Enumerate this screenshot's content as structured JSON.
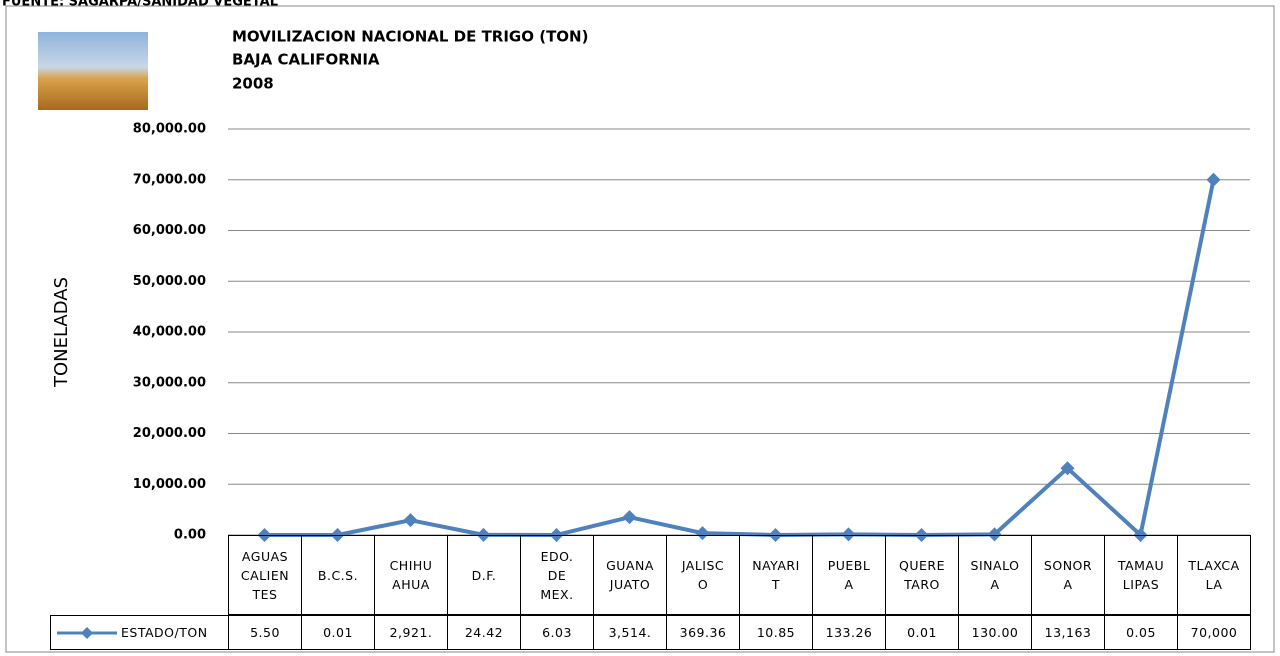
{
  "source": "FUENTE: SAGARPA/SANIDAD VEGETAL",
  "chart_data": {
    "type": "line",
    "title": "MOVILIZACION NACIONAL DE TRIGO (TON)",
    "subtitle": "BAJA CALIFORNIA",
    "year": "2008",
    "y_label": "TONELADAS",
    "categories": [
      "AGUAS\nCALIEN\nTES",
      "B.C.S.",
      "CHIHU\nAHUA",
      "D.F.",
      "EDO.\nDE\nMEX.",
      "GUANA\nJUATO",
      "JALISC\nO",
      "NAYARI\nT",
      "PUEBL\nA",
      "QUERE\nTARO",
      "SINALO\nA",
      "SONOR\nA",
      "TAMAU\nLIPAS",
      "TLAXCA\nLA"
    ],
    "series": [
      {
        "name": "ESTADO/TON",
        "color": "#4f81bd",
        "values": [
          5.5,
          0.01,
          2921,
          24.42,
          6.03,
          3514,
          369.36,
          10.85,
          133.26,
          0.01,
          130,
          13163,
          0.05,
          70000
        ],
        "value_labels": [
          "5.50",
          "0.01",
          "2,921.",
          "24.42",
          "6.03",
          "3,514.",
          "369.36",
          "10.85",
          "133.26",
          "0.01",
          "130.00",
          "13,163",
          "0.05",
          "70,000"
        ]
      }
    ],
    "ylim": [
      0,
      80000
    ],
    "yticks": [
      {
        "value": 0,
        "label": "0.00"
      },
      {
        "value": 10000,
        "label": "10,000.00"
      },
      {
        "value": 20000,
        "label": "20,000.00"
      },
      {
        "value": 30000,
        "label": "30,000.00"
      },
      {
        "value": 40000,
        "label": "40,000.00"
      },
      {
        "value": 50000,
        "label": "50,000.00"
      },
      {
        "value": 60000,
        "label": "60,000.00"
      },
      {
        "value": 70000,
        "label": "70,000.00"
      },
      {
        "value": 80000,
        "label": "80,000.00"
      }
    ],
    "grid": true
  }
}
